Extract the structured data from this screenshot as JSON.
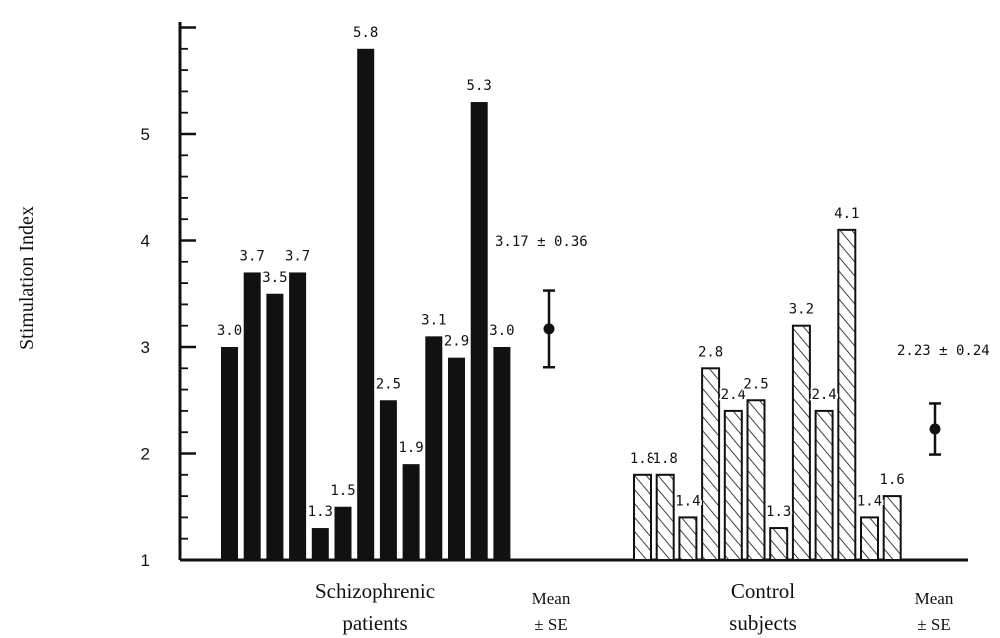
{
  "chart_data": {
    "type": "bar",
    "title": "",
    "ylabel": "Stimulation Index",
    "ylim": [
      1,
      6
    ],
    "yticks": [
      1,
      2,
      3,
      4,
      5
    ],
    "groups": [
      {
        "name_lines": [
          "Schizophrenic",
          "patients"
        ],
        "fill": "solid",
        "values": [
          3.0,
          3.7,
          3.5,
          3.7,
          1.3,
          1.5,
          5.8,
          2.5,
          1.9,
          3.1,
          2.9,
          5.3,
          3.0
        ],
        "labels": [
          "3.0",
          "3.7",
          "3.5",
          "3.7",
          "1.3",
          "1.5",
          "5.8",
          "2.5",
          "1.9",
          "3.1",
          "2.9",
          "5.3",
          "3.0"
        ],
        "mean": 3.17,
        "se": 0.36,
        "mean_text": "3.17 ± 0.36",
        "mean_label_lines": [
          "Mean",
          "± SE"
        ]
      },
      {
        "name_lines": [
          "Control",
          "subjects"
        ],
        "fill": "hatched",
        "values": [
          1.8,
          1.8,
          1.4,
          2.8,
          2.4,
          2.5,
          1.3,
          3.2,
          2.4,
          4.1,
          1.4,
          1.6
        ],
        "labels": [
          "1.8",
          "1.8",
          "1.4",
          "2.8",
          "2.4",
          "2.5",
          "1.3",
          "3.2",
          "2.4",
          "4.1",
          "1.4",
          "1.6"
        ],
        "mean": 2.23,
        "se": 0.24,
        "mean_text": "2.23 ± 0.24",
        "mean_label_lines": [
          "Mean",
          "± SE"
        ]
      }
    ],
    "colors": {
      "bar": "#111111",
      "axis": "#111111",
      "background": "#ffffff"
    }
  }
}
